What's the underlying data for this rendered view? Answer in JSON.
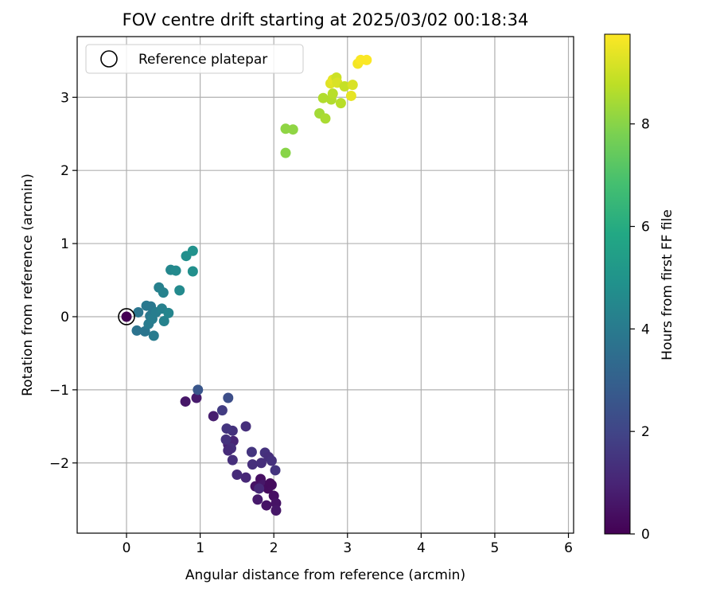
{
  "chart_data": {
    "type": "scatter",
    "title": "FOV centre drift starting at 2025/03/02 00:18:34",
    "xlabel": "Angular distance from reference (arcmin)",
    "ylabel": "Rotation from reference (arcmin)",
    "xlim": [
      -0.67,
      6.07
    ],
    "ylim": [
      -2.96,
      3.83
    ],
    "xticks": [
      0,
      1,
      2,
      3,
      4,
      5,
      6
    ],
    "yticks": [
      -2,
      -1,
      0,
      1,
      2,
      3
    ],
    "xtick_labels": [
      "0",
      "1",
      "2",
      "3",
      "4",
      "5",
      "6"
    ],
    "ytick_labels": [
      "−2",
      "−1",
      "0",
      "1",
      "2",
      "3"
    ],
    "grid": true,
    "legend": {
      "position": "top-left",
      "entries": [
        "Reference platepar"
      ]
    },
    "reference_point": {
      "x": 0,
      "y": 0
    },
    "colorbar": {
      "label": "Hours from first FF file",
      "colormap": "viridis",
      "range": [
        0,
        9.75
      ],
      "ticks": [
        0,
        2,
        4,
        6,
        8
      ],
      "tick_labels": [
        "0",
        "2",
        "4",
        "6",
        "8"
      ]
    },
    "points": [
      {
        "x": 0.0,
        "y": 0.0,
        "c": 0.0
      },
      {
        "x": 0.8,
        "y": -1.16,
        "c": 0.6
      },
      {
        "x": 0.95,
        "y": -1.11,
        "c": 0.7
      },
      {
        "x": 1.18,
        "y": -1.36,
        "c": 0.8
      },
      {
        "x": 1.38,
        "y": -1.75,
        "c": 0.9
      },
      {
        "x": 1.45,
        "y": -1.7,
        "c": 1.0
      },
      {
        "x": 1.75,
        "y": -2.32,
        "c": 0.5
      },
      {
        "x": 1.82,
        "y": -2.22,
        "c": 0.4
      },
      {
        "x": 1.85,
        "y": -2.3,
        "c": 0.6
      },
      {
        "x": 1.92,
        "y": -2.35,
        "c": 0.3
      },
      {
        "x": 1.97,
        "y": -2.3,
        "c": 0.4
      },
      {
        "x": 1.9,
        "y": -2.58,
        "c": 0.5
      },
      {
        "x": 2.0,
        "y": -2.45,
        "c": 0.4
      },
      {
        "x": 2.03,
        "y": -2.55,
        "c": 0.5
      },
      {
        "x": 2.03,
        "y": -2.65,
        "c": 0.6
      },
      {
        "x": 1.78,
        "y": -2.5,
        "c": 0.7
      },
      {
        "x": 1.95,
        "y": -2.28,
        "c": 0.3
      },
      {
        "x": 1.62,
        "y": -2.2,
        "c": 1.1
      },
      {
        "x": 1.5,
        "y": -2.16,
        "c": 1.2
      },
      {
        "x": 1.44,
        "y": -1.96,
        "c": 1.3
      },
      {
        "x": 1.42,
        "y": -1.8,
        "c": 1.3
      },
      {
        "x": 1.35,
        "y": -1.68,
        "c": 1.4
      },
      {
        "x": 1.38,
        "y": -1.83,
        "c": 1.2
      },
      {
        "x": 1.44,
        "y": -1.56,
        "c": 1.4
      },
      {
        "x": 1.36,
        "y": -1.53,
        "c": 1.5
      },
      {
        "x": 1.62,
        "y": -1.5,
        "c": 1.3
      },
      {
        "x": 1.7,
        "y": -1.85,
        "c": 1.5
      },
      {
        "x": 1.71,
        "y": -2.02,
        "c": 1.3
      },
      {
        "x": 1.83,
        "y": -2.0,
        "c": 1.3
      },
      {
        "x": 1.88,
        "y": -1.86,
        "c": 1.4
      },
      {
        "x": 1.93,
        "y": -1.92,
        "c": 1.3
      },
      {
        "x": 1.97,
        "y": -1.97,
        "c": 1.4
      },
      {
        "x": 2.02,
        "y": -2.1,
        "c": 1.5
      },
      {
        "x": 1.8,
        "y": -2.35,
        "c": 1.1
      },
      {
        "x": 1.3,
        "y": -1.28,
        "c": 1.7
      },
      {
        "x": 1.38,
        "y": -1.11,
        "c": 2.3
      },
      {
        "x": 0.97,
        "y": -1.0,
        "c": 2.6
      },
      {
        "x": 0.14,
        "y": -0.19,
        "c": 3.7
      },
      {
        "x": 0.16,
        "y": 0.06,
        "c": 3.8
      },
      {
        "x": 0.25,
        "y": -0.2,
        "c": 3.8
      },
      {
        "x": 0.27,
        "y": 0.15,
        "c": 3.9
      },
      {
        "x": 0.3,
        "y": -0.1,
        "c": 4.0
      },
      {
        "x": 0.32,
        "y": 0.01,
        "c": 3.9
      },
      {
        "x": 0.33,
        "y": 0.14,
        "c": 3.9
      },
      {
        "x": 0.35,
        "y": -0.03,
        "c": 4.1
      },
      {
        "x": 0.37,
        "y": -0.26,
        "c": 4.0
      },
      {
        "x": 0.4,
        "y": 0.06,
        "c": 4.1
      },
      {
        "x": 0.44,
        "y": 0.4,
        "c": 4.2
      },
      {
        "x": 0.48,
        "y": 0.11,
        "c": 4.2
      },
      {
        "x": 0.5,
        "y": 0.33,
        "c": 4.3
      },
      {
        "x": 0.51,
        "y": -0.06,
        "c": 4.3
      },
      {
        "x": 0.57,
        "y": 0.05,
        "c": 4.4
      },
      {
        "x": 0.6,
        "y": 0.64,
        "c": 4.5
      },
      {
        "x": 0.67,
        "y": 0.63,
        "c": 4.6
      },
      {
        "x": 0.72,
        "y": 0.36,
        "c": 4.6
      },
      {
        "x": 0.81,
        "y": 0.83,
        "c": 4.8
      },
      {
        "x": 0.9,
        "y": 0.62,
        "c": 4.8
      },
      {
        "x": 0.9,
        "y": 0.9,
        "c": 4.9
      },
      {
        "x": 2.16,
        "y": 2.57,
        "c": 8.1
      },
      {
        "x": 2.16,
        "y": 2.24,
        "c": 8.0
      },
      {
        "x": 2.26,
        "y": 2.56,
        "c": 8.1
      },
      {
        "x": 2.62,
        "y": 2.78,
        "c": 8.4
      },
      {
        "x": 2.67,
        "y": 2.99,
        "c": 8.6
      },
      {
        "x": 2.7,
        "y": 2.71,
        "c": 8.5
      },
      {
        "x": 2.78,
        "y": 2.97,
        "c": 8.6
      },
      {
        "x": 2.8,
        "y": 3.05,
        "c": 8.7
      },
      {
        "x": 2.77,
        "y": 3.19,
        "c": 9.3
      },
      {
        "x": 2.8,
        "y": 3.24,
        "c": 9.4
      },
      {
        "x": 2.85,
        "y": 3.27,
        "c": 9.0
      },
      {
        "x": 2.86,
        "y": 3.2,
        "c": 9.2
      },
      {
        "x": 2.91,
        "y": 2.92,
        "c": 8.7
      },
      {
        "x": 2.96,
        "y": 3.15,
        "c": 8.9
      },
      {
        "x": 3.05,
        "y": 3.02,
        "c": 9.4
      },
      {
        "x": 3.07,
        "y": 3.17,
        "c": 9.2
      },
      {
        "x": 3.14,
        "y": 3.46,
        "c": 9.6
      },
      {
        "x": 3.18,
        "y": 3.51,
        "c": 9.7
      },
      {
        "x": 3.26,
        "y": 3.51,
        "c": 9.7
      }
    ]
  }
}
